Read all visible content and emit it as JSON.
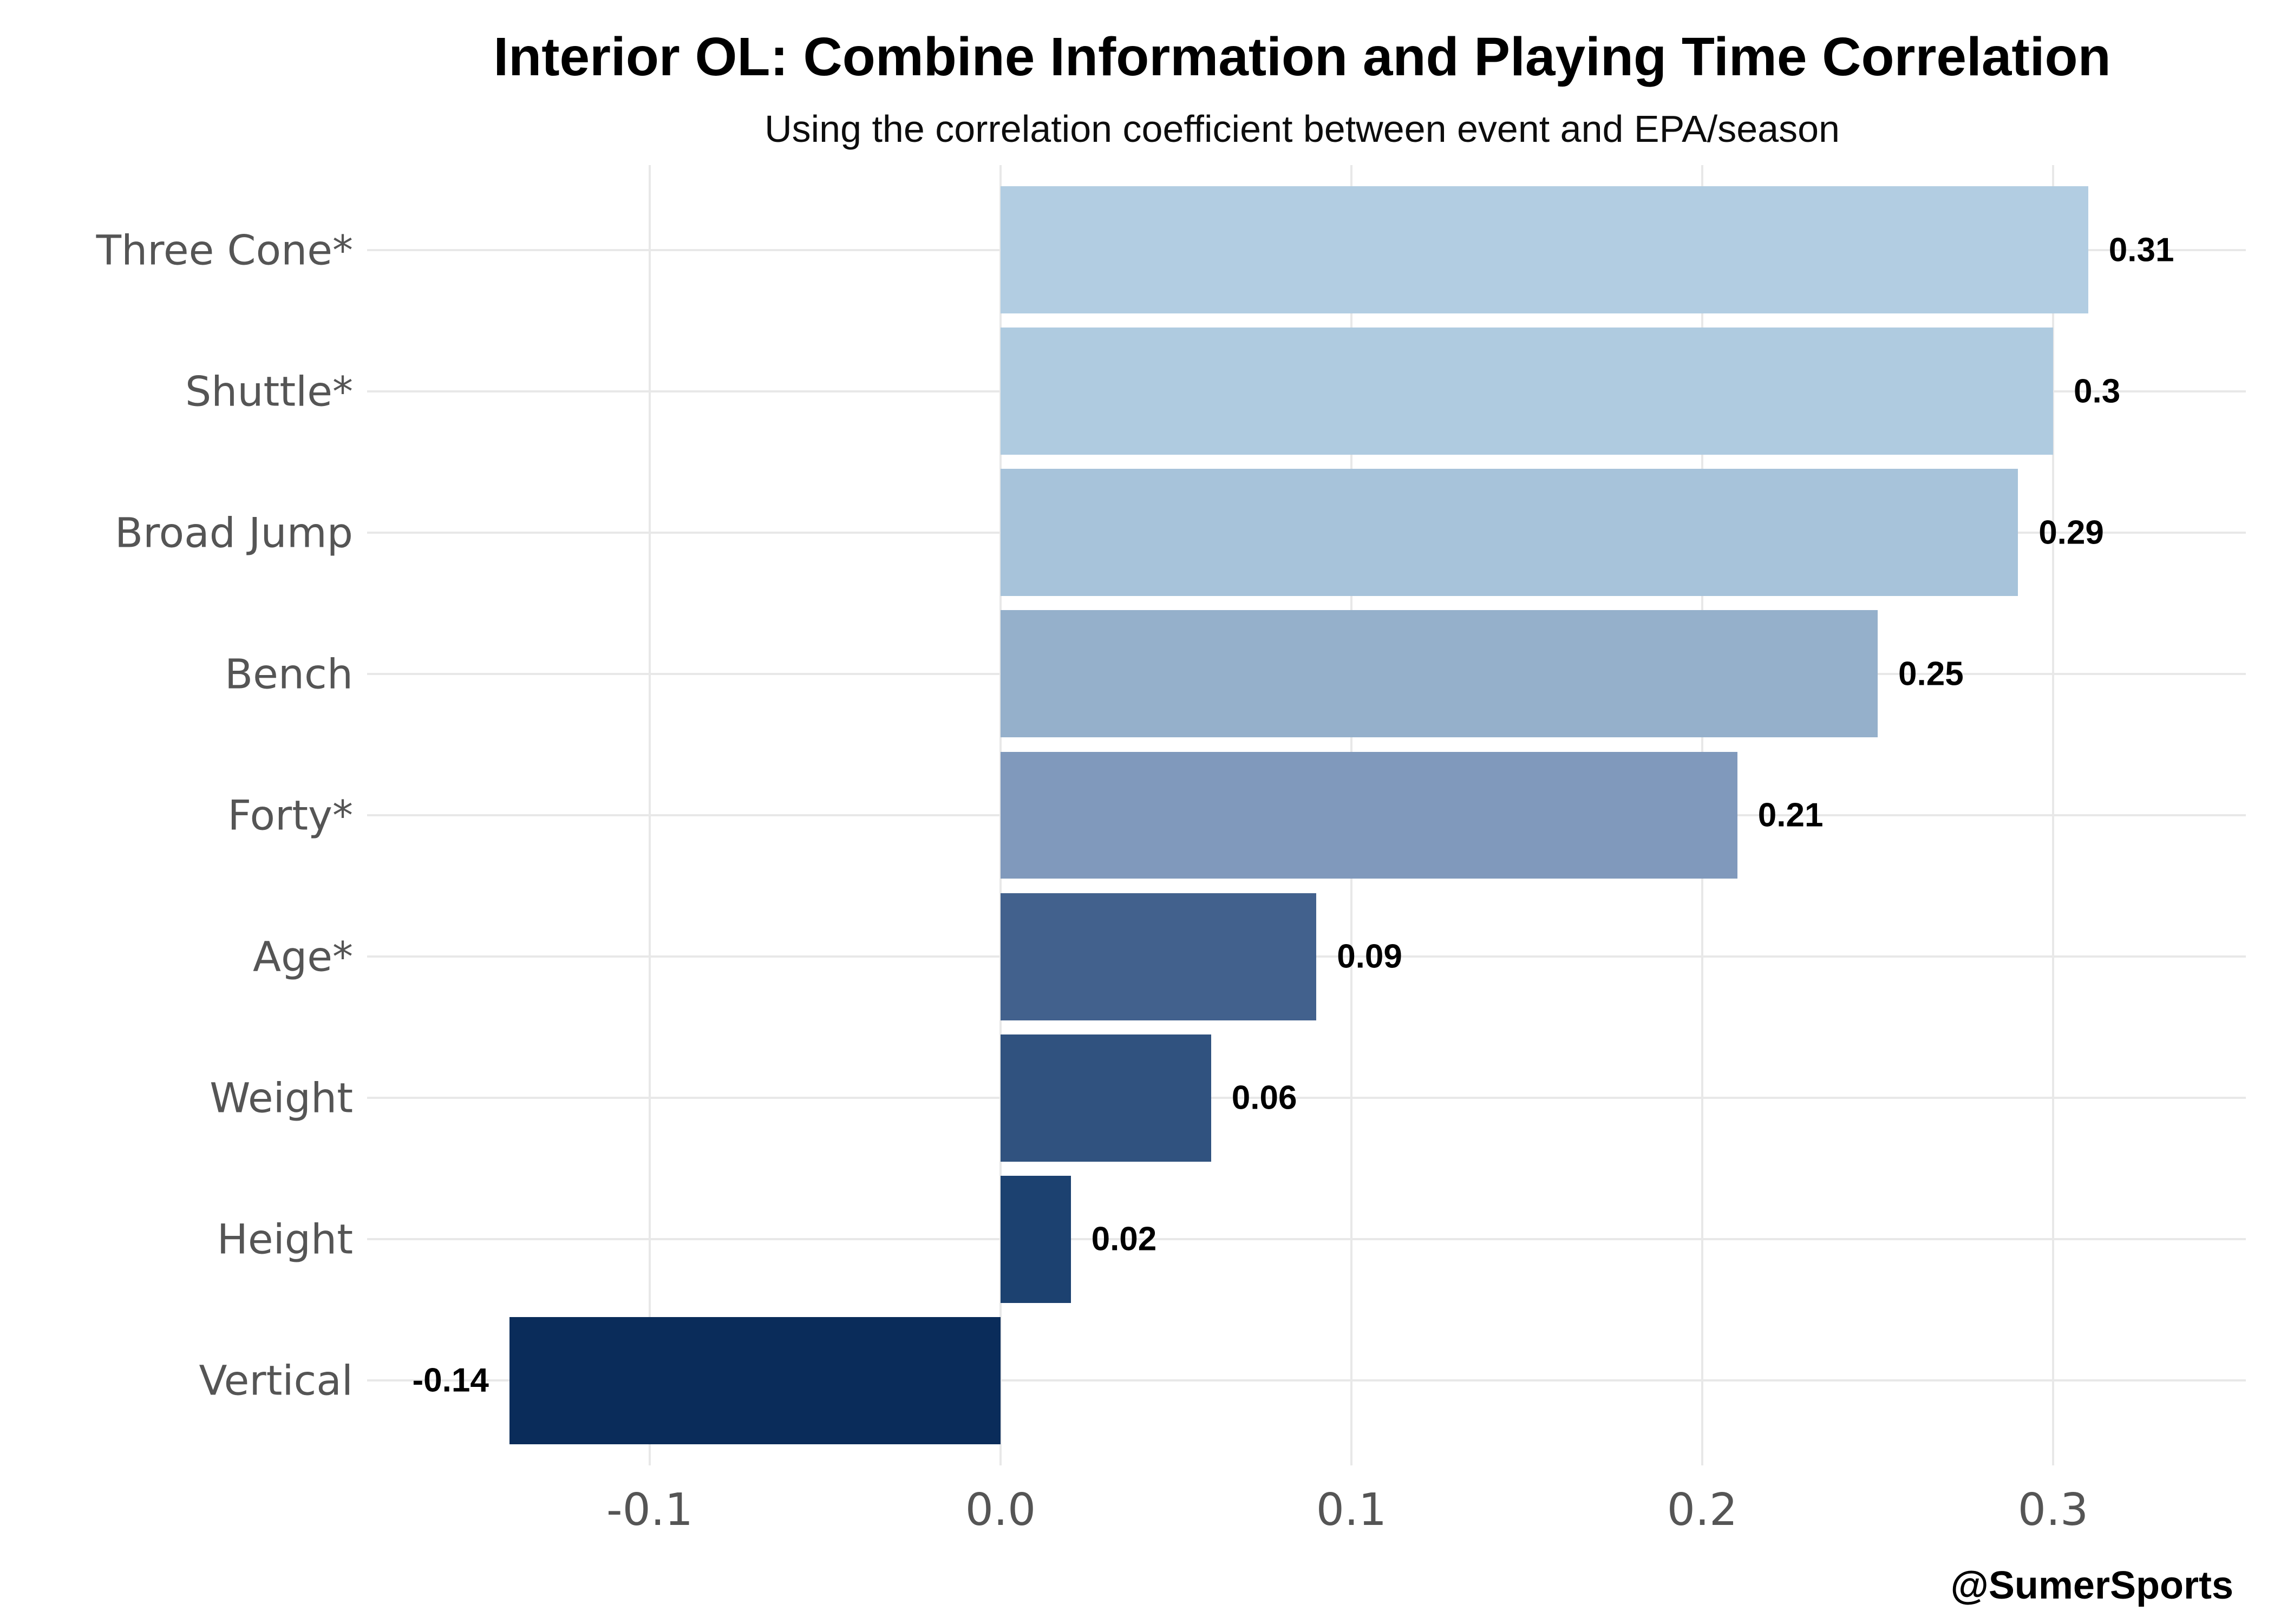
{
  "page": {
    "background": "#ffffff"
  },
  "header": {
    "title": "Interior OL: Combine Information and Playing Time Correlation",
    "subtitle": "Using the correlation coefficient between event and EPA/season"
  },
  "footer": {
    "attribution": "@SumerSports"
  },
  "chart_data": {
    "type": "bar",
    "orientation": "horizontal",
    "title": "Interior OL: Combine Information and Playing Time Correlation",
    "subtitle": "Using the correlation coefficient between event and EPA/season",
    "categories": [
      "Three Cone*",
      "Shuttle*",
      "Broad Jump",
      "Bench",
      "Forty*",
      "Age*",
      "Weight",
      "Height",
      "Vertical"
    ],
    "values": [
      0.31,
      0.3,
      0.29,
      0.25,
      0.21,
      0.09,
      0.06,
      0.02,
      -0.14
    ],
    "value_labels": [
      "0.31",
      "0.3",
      "0.29",
      "0.25",
      "0.21",
      "0.09",
      "0.06",
      "0.02",
      "-0.14"
    ],
    "bar_colors": [
      "#B2CDE2",
      "#AFCBE0",
      "#A7C3DA",
      "#95B0CB",
      "#8099BC",
      "#42618D",
      "#30527F",
      "#1C4170",
      "#0A2C5A"
    ],
    "x_ticks": [
      -0.1,
      0.0,
      0.1,
      0.2,
      0.3
    ],
    "x_tick_labels": [
      "-0.1",
      "0.0",
      "0.1",
      "0.2",
      "0.3"
    ],
    "xlim": [
      -0.18,
      0.355
    ],
    "xlabel": "",
    "ylabel": "",
    "grid": "on",
    "legend": "none",
    "gridline_color": "#e8e8e8",
    "axis_text_color": "#555555",
    "value_label_color": "#000000"
  }
}
